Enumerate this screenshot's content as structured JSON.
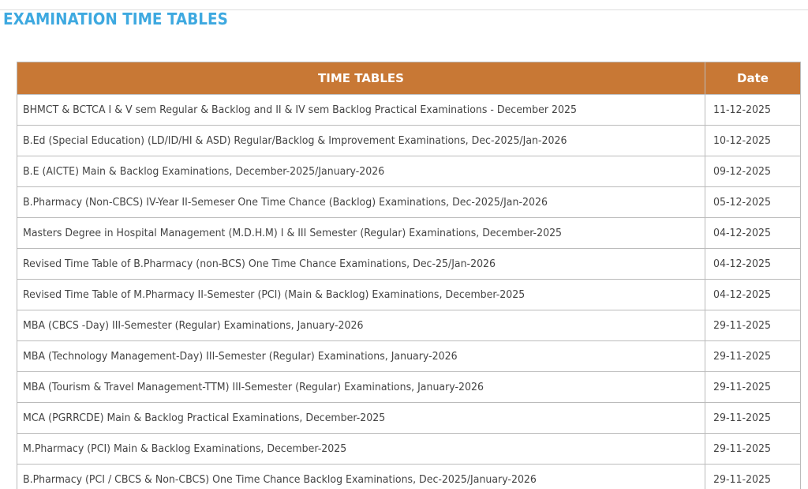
{
  "page_title": "EXAMINATION TIME TABLES",
  "table": {
    "headers": {
      "title": "TIME TABLES",
      "date": "Date"
    },
    "rows": [
      {
        "title": "BHMCT & BCTCA I & V sem Regular & Backlog and II & IV sem Backlog Practical Examinations - December 2025",
        "date": "11-12-2025"
      },
      {
        "title": "B.Ed (Special Education) (LD/ID/HI & ASD) Regular/Backlog & Improvement Examinations, Dec-2025/Jan-2026",
        "date": "10-12-2025"
      },
      {
        "title": "B.E (AICTE) Main & Backlog Examinations, December-2025/January-2026",
        "date": "09-12-2025"
      },
      {
        "title": "B.Pharmacy (Non-CBCS) IV-Year II-Semeser One Time Chance (Backlog) Examinations, Dec-2025/Jan-2026",
        "date": "05-12-2025"
      },
      {
        "title": "Masters Degree in Hospital Management (M.D.H.M) I & III Semester (Regular) Examinations, December-2025",
        "date": "04-12-2025"
      },
      {
        "title": "Revised Time Table of B.Pharmacy (non-BCS) One Time Chance Examinations, Dec-25/Jan-2026",
        "date": "04-12-2025"
      },
      {
        "title": "Revised Time Table of M.Pharmacy II-Semester (PCI) (Main & Backlog) Examinations, December-2025",
        "date": "04-12-2025"
      },
      {
        "title": "MBA (CBCS -Day) III-Semester (Regular) Examinations, January-2026",
        "date": "29-11-2025"
      },
      {
        "title": "MBA (Technology Management-Day) III-Semester (Regular) Examinations, January-2026",
        "date": "29-11-2025"
      },
      {
        "title": "MBA (Tourism & Travel Management-TTM) III-Semester (Regular) Examinations, January-2026",
        "date": "29-11-2025"
      },
      {
        "title": "MCA (PGRRCDE) Main & Backlog Practical Examinations, December-2025",
        "date": "29-11-2025"
      },
      {
        "title": "M.Pharmacy (PCI) Main & Backlog Examinations, December-2025",
        "date": "29-11-2025"
      },
      {
        "title": "B.Pharmacy (PCI / CBCS & Non-CBCS) One Time Chance Backlog Examinations, Dec-2025/January-2026",
        "date": "29-11-2025"
      }
    ]
  },
  "colors": {
    "title": "#3ea9e0",
    "header_bg": "#c87835"
  }
}
